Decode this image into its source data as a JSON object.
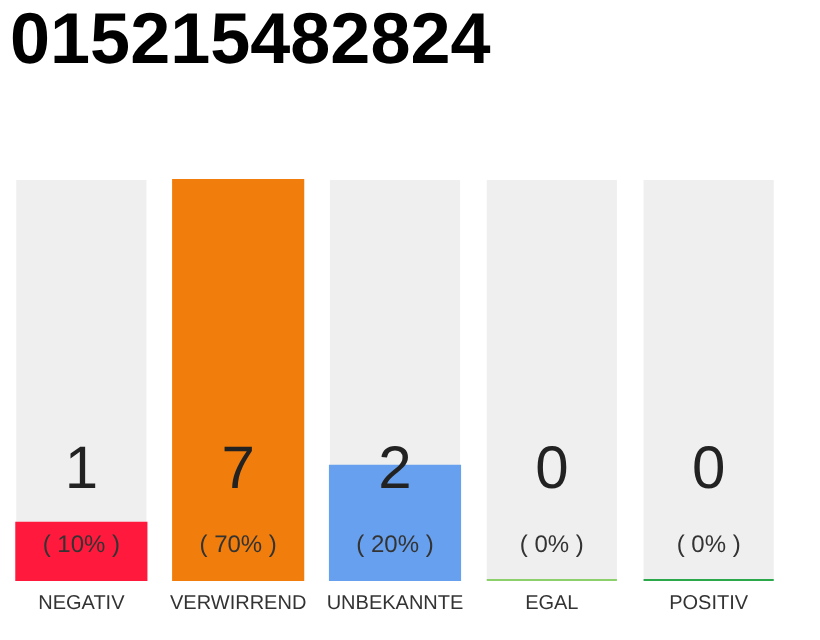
{
  "chart_data": {
    "type": "bar",
    "title": "015215482824",
    "categories": [
      "NEGATIV",
      "VERWIRREND",
      "UNBEKANNTE",
      "EGAL",
      "POSITIV"
    ],
    "values": [
      10,
      70,
      20,
      0,
      0
    ],
    "colors": [
      "#ff1a3d",
      "#f07d0c",
      "#67a0ee",
      "#8bd06b",
      "#2aa84a"
    ],
    "value_labels": [
      "( 10% )",
      "( 70% )",
      "( 20% )",
      "( 0% )",
      "( 0% )"
    ],
    "annotations": [
      "1",
      "7",
      "2",
      "0",
      "0"
    ]
  }
}
